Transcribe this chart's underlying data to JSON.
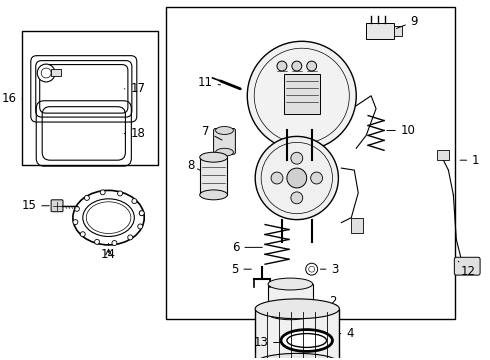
{
  "background_color": "#ffffff",
  "line_color": "#000000",
  "text_color": "#000000",
  "fig_w": 4.9,
  "fig_h": 3.6,
  "dpi": 100
}
